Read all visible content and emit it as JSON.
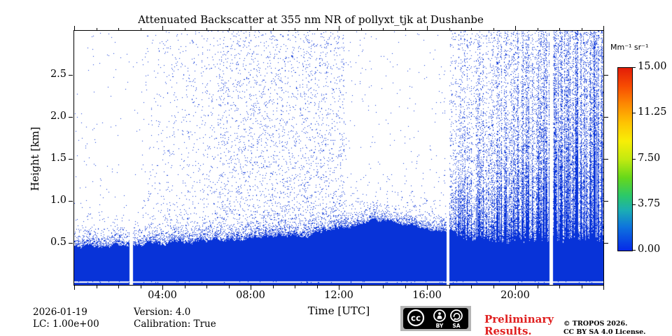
{
  "chart_data": {
    "type": "heatmap",
    "title": "Attenuated Backscatter at 355 nm NR of pollyxt_tjk at Dushanbe",
    "xlabel": "Time [UTC]",
    "ylabel": "Height [km]",
    "x_range_hours": [
      0,
      24
    ],
    "y_range_km": [
      0,
      3.03
    ],
    "x_tick_hours": [
      0,
      4,
      8,
      12,
      16,
      20,
      24
    ],
    "x_tick_labels": [
      "",
      "04:00",
      "08:00",
      "12:00",
      "16:00",
      "20:00",
      ""
    ],
    "x_minor_step_hours": 1,
    "y_tick_km": [
      0.5,
      1.0,
      1.5,
      2.0,
      2.5
    ],
    "y_tick_labels": [
      "0.5",
      "1.0",
      "1.5",
      "2.0",
      "2.5"
    ],
    "grid": false,
    "background_color": "#ffffff",
    "data_color": "#0833d8",
    "colorbar": {
      "label": "Mm⁻¹ sr⁻¹",
      "tick_values": [
        0,
        3.75,
        7.5,
        11.25,
        15
      ],
      "tick_labels": [
        "0.00",
        "3.75",
        "7.50",
        "11.25",
        "15.00"
      ],
      "min": 0.0,
      "max": 15.0,
      "gradient_top_to_bottom": [
        {
          "pos": 0.0,
          "color": "#e31d08"
        },
        {
          "pos": 0.1,
          "color": "#f74c02"
        },
        {
          "pos": 0.2,
          "color": "#fd8a02"
        },
        {
          "pos": 0.3,
          "color": "#fec302"
        },
        {
          "pos": 0.4,
          "color": "#f8ee06"
        },
        {
          "pos": 0.5,
          "color": "#c3ea10"
        },
        {
          "pos": 0.6,
          "color": "#67d81a"
        },
        {
          "pos": 0.7,
          "color": "#2bc86a"
        },
        {
          "pos": 0.78,
          "color": "#1badb4"
        },
        {
          "pos": 0.87,
          "color": "#0e74dd"
        },
        {
          "pos": 1.0,
          "color": "#0529e8"
        }
      ]
    },
    "data_gaps_hours": [
      [
        2.52,
        2.66
      ],
      [
        16.88,
        17.02
      ],
      [
        21.56,
        21.7
      ]
    ],
    "boundary_layer_top_km": {
      "hours": [
        0,
        1,
        2,
        3,
        4,
        5,
        6,
        7,
        8,
        9,
        10,
        11,
        12,
        13,
        13.8,
        15,
        16,
        17,
        17.5,
        18,
        20,
        22,
        24
      ],
      "km": [
        0.46,
        0.46,
        0.47,
        0.48,
        0.5,
        0.51,
        0.52,
        0.54,
        0.55,
        0.58,
        0.58,
        0.61,
        0.67,
        0.73,
        0.78,
        0.73,
        0.67,
        0.62,
        0.56,
        0.54,
        0.52,
        0.52,
        0.53
      ]
    },
    "near_surface_white_line_km": {
      "lo": 0.026,
      "hi": 0.044,
      "speck_p": 0.04
    },
    "noise": {
      "seed": 7,
      "height_falloff": 0.15,
      "bl_fringe": [
        {
          "amp": 0.55,
          "scale_km": 0.07
        },
        {
          "amp": 0.06,
          "scale_km": 0.2
        }
      ],
      "edge_jitter_km": 0.12,
      "spike_hours": [
        8,
        13
      ],
      "regions": [
        {
          "t0": 0.0,
          "t1": 3.0,
          "d0": 0.0025,
          "d1": 0.0025
        },
        {
          "t0": 3.0,
          "t1": 6.5,
          "d0": 0.008,
          "d1": 0.03
        },
        {
          "t0": 6.5,
          "t1": 12.25,
          "d0": 0.05,
          "d1": 0.05
        },
        {
          "t0": 12.25,
          "t1": 17.02,
          "d0": 0.004,
          "d1": 0.004
        },
        {
          "t0": 17.02,
          "t1": 24.0,
          "profile": {
            "A0": 0.55,
            "A1": 1.05,
            "L0": 0.5,
            "L1": 0.95,
            "C0": 0.05,
            "C1": 0.2,
            "ref_km": 0.5
          },
          "streaky": true
        }
      ]
    }
  },
  "footer": {
    "date": "2026-01-19",
    "lc": "LC: 1.00e+00",
    "version": "Version: 4.0",
    "calibration": "Calibration: True",
    "preliminary_line1": "Preliminary",
    "preliminary_line2": "Results.",
    "preliminary_color": "#e02020",
    "copyright_line1": "© TROPOS 2026.",
    "copyright_line2": "CC BY SA 4.0 License.",
    "license_badge": {
      "cc_label": "cc",
      "by_label": "BY",
      "sa_label": "SA",
      "bg_color": "#b5b5b5",
      "plaque_color": "#000000"
    }
  }
}
